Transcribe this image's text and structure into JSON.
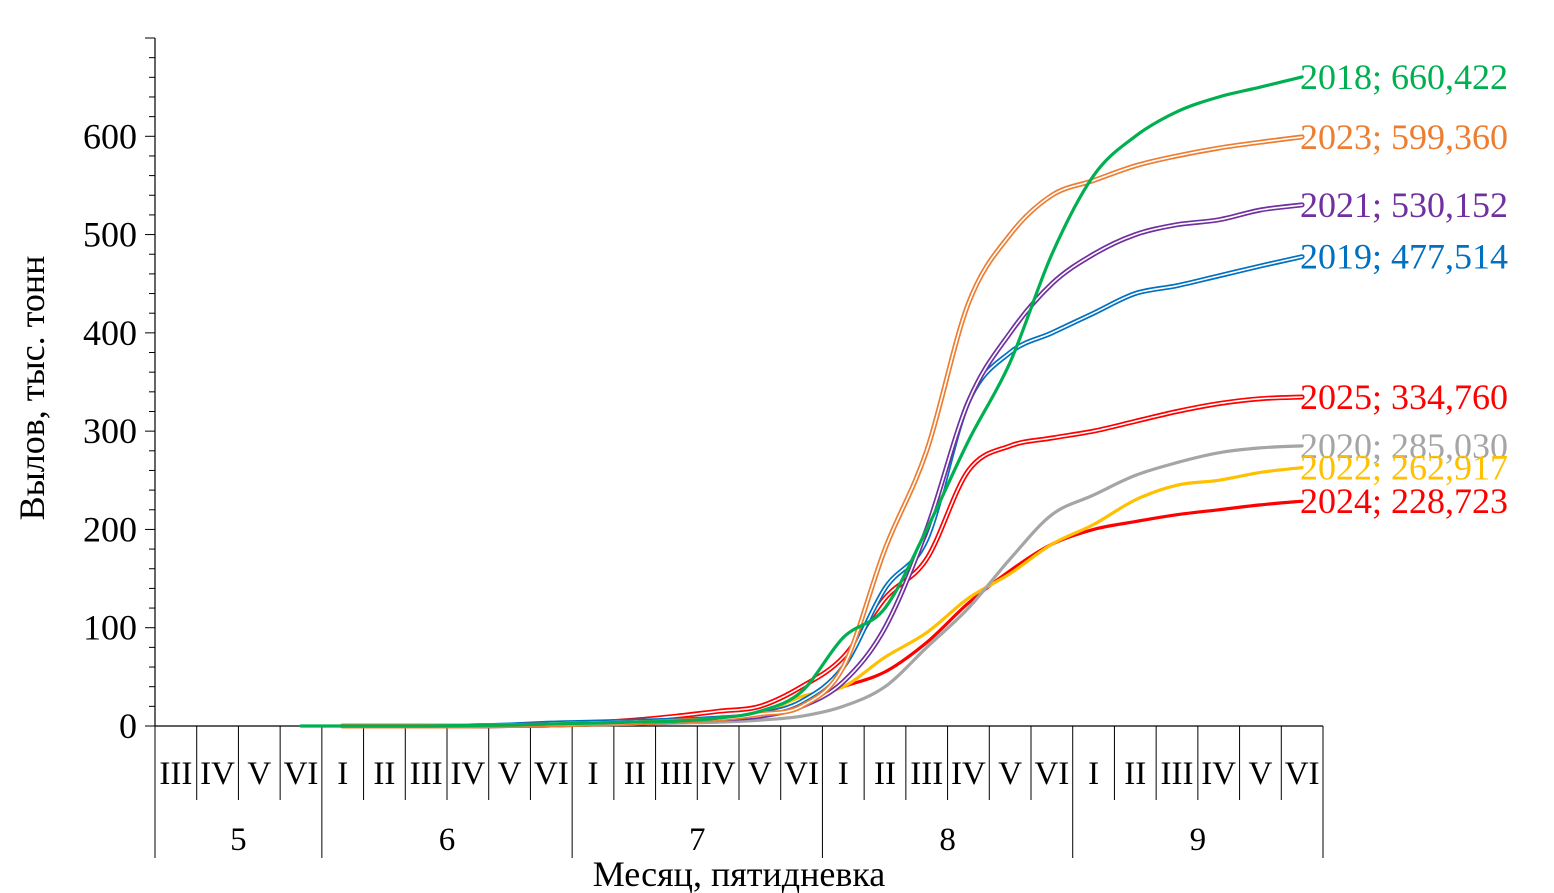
{
  "chart_data": {
    "type": "line",
    "xlabel": "Месяц, пятидневка",
    "ylabel": "Вылов, тыс. тонн",
    "ylim": [
      0,
      700
    ],
    "yticks": [
      "0",
      "100",
      "200",
      "300",
      "400",
      "500",
      "600"
    ],
    "grid": false,
    "legend": "none",
    "categories": {
      "pentads": [
        "III",
        "IV",
        "V",
        "VI",
        "I",
        "II",
        "III",
        "IV",
        "V",
        "VI",
        "I",
        "II",
        "III",
        "IV",
        "V",
        "VI",
        "I",
        "II",
        "III",
        "IV",
        "V",
        "VI",
        "I",
        "II",
        "III",
        "IV",
        "V",
        "VI"
      ],
      "months": [
        {
          "label": "5",
          "count": 4
        },
        {
          "label": "6",
          "count": 6
        },
        {
          "label": "7",
          "count": 6
        },
        {
          "label": "8",
          "count": 6
        },
        {
          "label": "9",
          "count": 6
        }
      ]
    },
    "series": [
      {
        "name": "2018",
        "label": "2018; 660,422",
        "color": "#00b050",
        "style": "single",
        "values": [
          0,
          0,
          0,
          0,
          0.5,
          1,
          2,
          3,
          4,
          5,
          8,
          15,
          35,
          90,
          120,
          200,
          290,
          370,
          480,
          560,
          600,
          625,
          640,
          650,
          660.422
        ]
      },
      {
        "name": "2023",
        "label": "2023; 599,360",
        "color": "#ed7d31",
        "style": "double",
        "values": [
          0,
          0,
          0,
          0,
          0.5,
          1,
          2,
          3,
          5,
          7,
          12,
          20,
          60,
          180,
          280,
          430,
          500,
          540,
          555,
          570,
          580,
          588,
          594,
          599.36
        ]
      },
      {
        "name": "2021",
        "label": "2021; 530,152",
        "color": "#7030a0",
        "style": "double",
        "values": [
          0,
          0,
          0,
          0,
          0.5,
          1,
          2,
          3,
          5,
          7,
          10,
          20,
          45,
          100,
          200,
          330,
          400,
          450,
          480,
          500,
          510,
          515,
          525,
          530.152
        ]
      },
      {
        "name": "2019",
        "label": "2019; 477,514",
        "color": "#0070c0",
        "style": "double",
        "values": [
          0,
          0,
          0,
          0,
          1,
          3,
          4,
          5,
          6,
          8,
          12,
          25,
          60,
          140,
          190,
          330,
          380,
          400,
          420,
          440,
          448,
          458,
          468,
          477.514
        ]
      },
      {
        "name": "2025",
        "label": "2025; 334,760",
        "color": "#ff0000",
        "style": "double",
        "values": [
          0,
          0,
          0,
          0,
          0.5,
          1,
          3,
          6,
          10,
          15,
          20,
          40,
          70,
          130,
          170,
          260,
          285,
          293,
          300,
          310,
          320,
          328,
          333,
          334.76
        ]
      },
      {
        "name": "2020",
        "label": "2020; 285,030",
        "color": "#a5a5a5",
        "style": "single",
        "values": [
          0,
          0,
          0,
          0,
          0,
          0.5,
          1,
          2,
          3,
          4,
          6,
          10,
          20,
          40,
          80,
          120,
          170,
          215,
          235,
          255,
          268,
          278,
          283,
          285.03
        ]
      },
      {
        "name": "2022",
        "label": "2022; 262,917",
        "color": "#ffc000",
        "style": "single",
        "values": [
          0,
          0,
          0,
          0,
          0.5,
          1,
          2,
          4,
          6,
          8,
          12,
          30,
          40,
          70,
          95,
          130,
          155,
          185,
          205,
          230,
          245,
          250,
          258,
          262.917
        ]
      },
      {
        "name": "2024",
        "label": "2024; 228,723",
        "color": "#ff0000",
        "style": "single",
        "values": [
          0,
          0,
          0,
          0,
          0.5,
          1,
          2,
          3,
          4,
          6,
          10,
          25,
          40,
          55,
          85,
          125,
          158,
          185,
          200,
          208,
          215,
          220,
          225,
          228.723
        ]
      }
    ]
  }
}
